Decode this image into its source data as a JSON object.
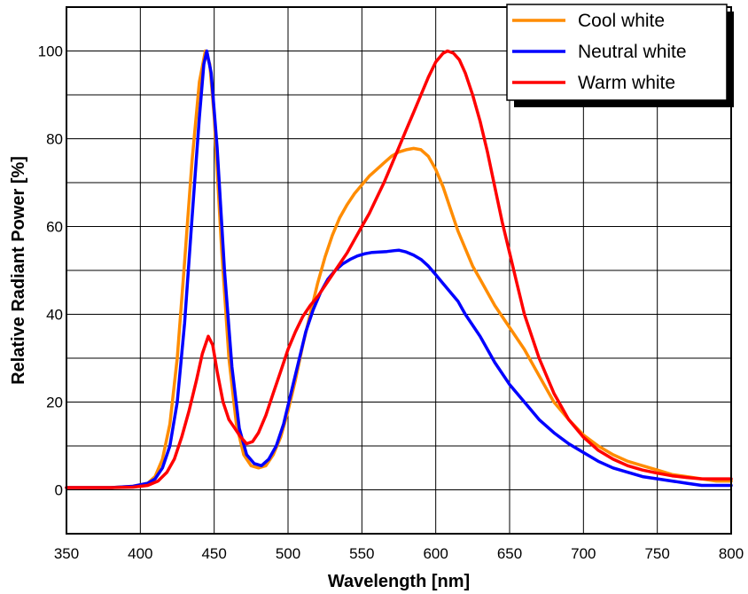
{
  "chart_data": {
    "type": "line",
    "title": "",
    "xlabel": "Wavelength [nm]",
    "ylabel": "Relative Radiant Power [%]",
    "xlim": [
      350,
      800
    ],
    "ylim": [
      -10,
      110
    ],
    "xticks": [
      350,
      400,
      450,
      500,
      550,
      600,
      650,
      700,
      750,
      800
    ],
    "yticks": [
      0,
      20,
      40,
      60,
      80,
      100
    ],
    "grid": true,
    "legend": "top-right",
    "series": [
      {
        "name": "Cool white",
        "color": "#ff8c00",
        "points": [
          [
            350,
            0.5
          ],
          [
            380,
            0.5
          ],
          [
            395,
            0.8
          ],
          [
            405,
            1.5
          ],
          [
            410,
            3
          ],
          [
            415,
            7
          ],
          [
            420,
            15
          ],
          [
            425,
            30
          ],
          [
            430,
            52
          ],
          [
            435,
            75
          ],
          [
            440,
            93
          ],
          [
            444,
            100
          ],
          [
            447,
            97
          ],
          [
            450,
            85
          ],
          [
            455,
            55
          ],
          [
            460,
            30
          ],
          [
            465,
            15
          ],
          [
            470,
            8
          ],
          [
            475,
            5.5
          ],
          [
            480,
            5
          ],
          [
            485,
            5.5
          ],
          [
            490,
            8
          ],
          [
            495,
            12
          ],
          [
            500,
            18
          ],
          [
            505,
            25
          ],
          [
            510,
            33
          ],
          [
            515,
            40
          ],
          [
            520,
            47
          ],
          [
            525,
            53
          ],
          [
            530,
            58
          ],
          [
            535,
            62
          ],
          [
            540,
            65
          ],
          [
            545,
            67.5
          ],
          [
            550,
            69.5
          ],
          [
            555,
            71.5
          ],
          [
            560,
            73
          ],
          [
            565,
            74.5
          ],
          [
            570,
            76
          ],
          [
            575,
            77
          ],
          [
            580,
            77.5
          ],
          [
            585,
            77.8
          ],
          [
            590,
            77.5
          ],
          [
            595,
            76
          ],
          [
            600,
            73
          ],
          [
            605,
            69
          ],
          [
            610,
            64
          ],
          [
            615,
            59
          ],
          [
            620,
            55
          ],
          [
            625,
            51
          ],
          [
            630,
            48
          ],
          [
            640,
            42
          ],
          [
            650,
            37
          ],
          [
            660,
            32
          ],
          [
            670,
            26
          ],
          [
            680,
            20
          ],
          [
            690,
            16
          ],
          [
            700,
            12.5
          ],
          [
            710,
            10
          ],
          [
            720,
            8
          ],
          [
            730,
            6.5
          ],
          [
            740,
            5.5
          ],
          [
            750,
            4.5
          ],
          [
            760,
            3.5
          ],
          [
            770,
            3
          ],
          [
            780,
            2.5
          ],
          [
            790,
            2
          ],
          [
            800,
            2
          ]
        ]
      },
      {
        "name": "Neutral white",
        "color": "#0000ff",
        "points": [
          [
            350,
            0.5
          ],
          [
            380,
            0.5
          ],
          [
            395,
            0.8
          ],
          [
            405,
            1.5
          ],
          [
            410,
            2.5
          ],
          [
            415,
            5
          ],
          [
            420,
            10
          ],
          [
            425,
            20
          ],
          [
            430,
            38
          ],
          [
            435,
            62
          ],
          [
            440,
            85
          ],
          [
            443,
            97
          ],
          [
            445,
            100
          ],
          [
            448,
            95
          ],
          [
            452,
            78
          ],
          [
            457,
            50
          ],
          [
            462,
            28
          ],
          [
            467,
            14
          ],
          [
            472,
            8
          ],
          [
            477,
            6
          ],
          [
            482,
            5.5
          ],
          [
            487,
            7
          ],
          [
            492,
            10
          ],
          [
            497,
            15
          ],
          [
            502,
            22
          ],
          [
            507,
            29
          ],
          [
            512,
            36
          ],
          [
            517,
            41
          ],
          [
            522,
            45
          ],
          [
            527,
            48
          ],
          [
            532,
            50
          ],
          [
            537,
            51.5
          ],
          [
            542,
            52.5
          ],
          [
            547,
            53.3
          ],
          [
            552,
            53.8
          ],
          [
            557,
            54.1
          ],
          [
            562,
            54.2
          ],
          [
            567,
            54.3
          ],
          [
            572,
            54.5
          ],
          [
            575,
            54.6
          ],
          [
            580,
            54.2
          ],
          [
            585,
            53.5
          ],
          [
            590,
            52.5
          ],
          [
            595,
            51
          ],
          [
            600,
            49
          ],
          [
            605,
            47
          ],
          [
            610,
            45
          ],
          [
            615,
            43
          ],
          [
            620,
            40
          ],
          [
            630,
            35
          ],
          [
            640,
            29
          ],
          [
            650,
            24
          ],
          [
            660,
            20
          ],
          [
            670,
            16
          ],
          [
            680,
            13
          ],
          [
            690,
            10.5
          ],
          [
            700,
            8.5
          ],
          [
            710,
            6.5
          ],
          [
            720,
            5
          ],
          [
            730,
            4
          ],
          [
            740,
            3
          ],
          [
            750,
            2.5
          ],
          [
            760,
            2
          ],
          [
            770,
            1.5
          ],
          [
            780,
            1
          ],
          [
            790,
            1
          ],
          [
            800,
            1
          ]
        ]
      },
      {
        "name": "Warm white",
        "color": "#ff0000",
        "points": [
          [
            350,
            0.5
          ],
          [
            380,
            0.5
          ],
          [
            395,
            0.6
          ],
          [
            405,
            1
          ],
          [
            412,
            2
          ],
          [
            418,
            4
          ],
          [
            423,
            7
          ],
          [
            428,
            12
          ],
          [
            433,
            18
          ],
          [
            438,
            25
          ],
          [
            442,
            31
          ],
          [
            446,
            35
          ],
          [
            449,
            33
          ],
          [
            452,
            27
          ],
          [
            456,
            20
          ],
          [
            460,
            16
          ],
          [
            464,
            14
          ],
          [
            468,
            12
          ],
          [
            472,
            10.5
          ],
          [
            476,
            11
          ],
          [
            480,
            13
          ],
          [
            485,
            17
          ],
          [
            490,
            22
          ],
          [
            495,
            27
          ],
          [
            500,
            32
          ],
          [
            505,
            36
          ],
          [
            510,
            39.5
          ],
          [
            515,
            42
          ],
          [
            520,
            44
          ],
          [
            525,
            46.5
          ],
          [
            530,
            49
          ],
          [
            535,
            51.5
          ],
          [
            540,
            54
          ],
          [
            545,
            57
          ],
          [
            550,
            60
          ],
          [
            555,
            63
          ],
          [
            560,
            66.5
          ],
          [
            565,
            70
          ],
          [
            570,
            74
          ],
          [
            575,
            78
          ],
          [
            580,
            82
          ],
          [
            585,
            86
          ],
          [
            590,
            90
          ],
          [
            595,
            94
          ],
          [
            600,
            97.5
          ],
          [
            605,
            99.5
          ],
          [
            608,
            100
          ],
          [
            612,
            99.5
          ],
          [
            616,
            98
          ],
          [
            620,
            95
          ],
          [
            625,
            90
          ],
          [
            630,
            84
          ],
          [
            635,
            77
          ],
          [
            640,
            69
          ],
          [
            645,
            61
          ],
          [
            650,
            54
          ],
          [
            655,
            47
          ],
          [
            660,
            40
          ],
          [
            670,
            30
          ],
          [
            680,
            22
          ],
          [
            690,
            16
          ],
          [
            700,
            12
          ],
          [
            710,
            9
          ],
          [
            720,
            7
          ],
          [
            730,
            5.5
          ],
          [
            740,
            4.5
          ],
          [
            750,
            3.8
          ],
          [
            760,
            3.2
          ],
          [
            770,
            2.8
          ],
          [
            780,
            2.5
          ],
          [
            790,
            2.5
          ],
          [
            800,
            2.5
          ]
        ]
      }
    ]
  }
}
